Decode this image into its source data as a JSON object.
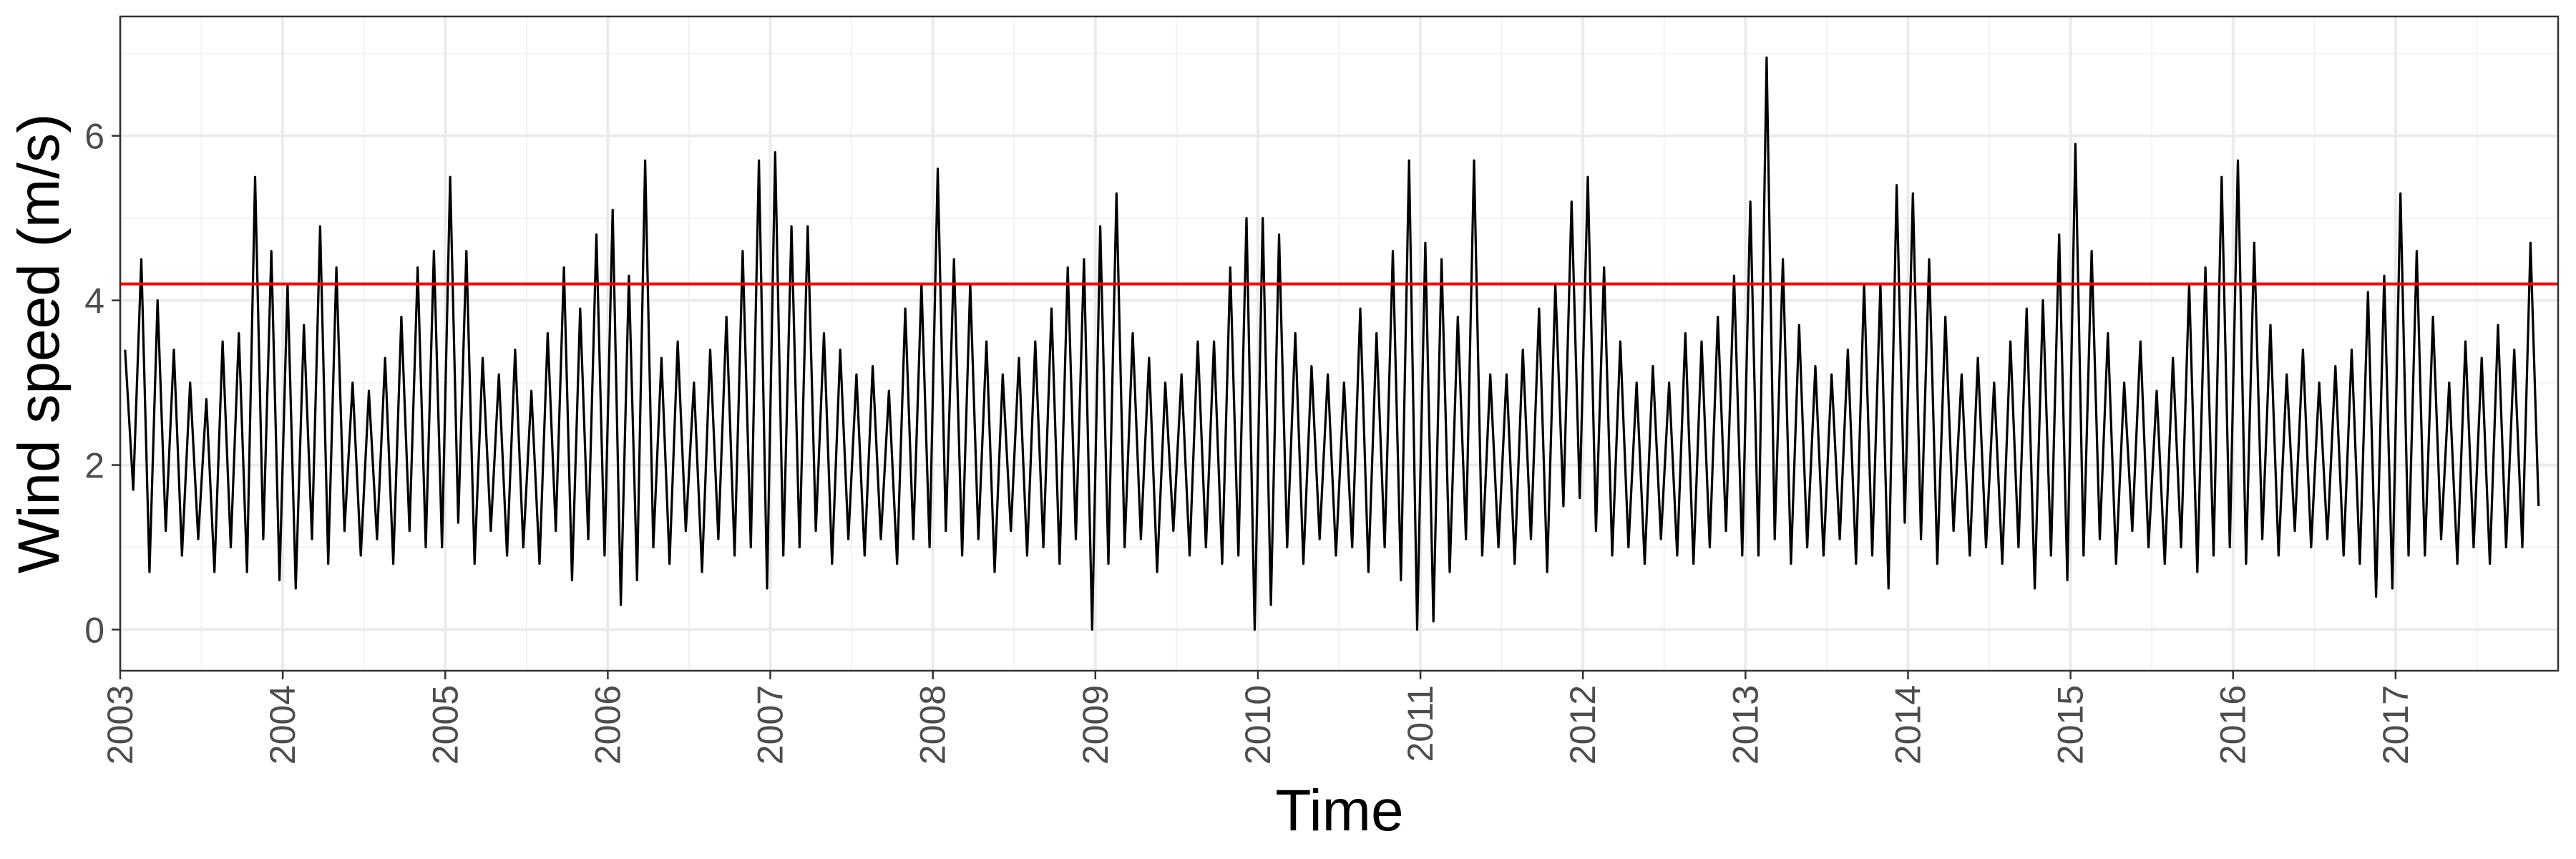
{
  "chart_data": {
    "type": "line",
    "x_label": "Time",
    "y_label": "Wind speed (m/s)",
    "color": "#000000",
    "hline": 4.2,
    "hline_color": "#ff0000",
    "grid": true,
    "xlim": [
      2003,
      2018
    ],
    "ylim": [
      -0.5,
      7.45
    ],
    "xticks": [
      2003,
      2004,
      2005,
      2006,
      2007,
      2008,
      2009,
      2010,
      2011,
      2012,
      2013,
      2014,
      2015,
      2016,
      2017
    ],
    "minor_xticks": [
      2003.5,
      2004.5,
      2005.5,
      2006.5,
      2007.5,
      2008.5,
      2009.5,
      2010.5,
      2011.5,
      2012.5,
      2013.5,
      2014.5,
      2015.5,
      2016.5,
      2017.5
    ],
    "yticks": [
      0,
      2,
      4,
      6
    ],
    "minor_yticks": [
      1,
      3,
      5,
      7
    ],
    "x": [
      2003.03,
      2003.08,
      2003.13,
      2003.18,
      2003.23,
      2003.28,
      2003.33,
      2003.38,
      2003.43,
      2003.48,
      2003.53,
      2003.58,
      2003.63,
      2003.68,
      2003.73,
      2003.78,
      2003.83,
      2003.88,
      2003.93,
      2003.98,
      2004.03,
      2004.08,
      2004.13,
      2004.18,
      2004.23,
      2004.28,
      2004.33,
      2004.38,
      2004.43,
      2004.48,
      2004.53,
      2004.58,
      2004.63,
      2004.68,
      2004.73,
      2004.78,
      2004.83,
      2004.88,
      2004.93,
      2004.98,
      2005.03,
      2005.08,
      2005.13,
      2005.18,
      2005.23,
      2005.28,
      2005.33,
      2005.38,
      2005.43,
      2005.48,
      2005.53,
      2005.58,
      2005.63,
      2005.68,
      2005.73,
      2005.78,
      2005.83,
      2005.88,
      2005.93,
      2005.98,
      2006.03,
      2006.08,
      2006.13,
      2006.18,
      2006.23,
      2006.28,
      2006.33,
      2006.38,
      2006.43,
      2006.48,
      2006.53,
      2006.58,
      2006.63,
      2006.68,
      2006.73,
      2006.78,
      2006.83,
      2006.88,
      2006.93,
      2006.98,
      2007.03,
      2007.08,
      2007.13,
      2007.18,
      2007.23,
      2007.28,
      2007.33,
      2007.38,
      2007.43,
      2007.48,
      2007.53,
      2007.58,
      2007.63,
      2007.68,
      2007.73,
      2007.78,
      2007.83,
      2007.88,
      2007.93,
      2007.98,
      2008.03,
      2008.08,
      2008.13,
      2008.18,
      2008.23,
      2008.28,
      2008.33,
      2008.38,
      2008.43,
      2008.48,
      2008.53,
      2008.58,
      2008.63,
      2008.68,
      2008.73,
      2008.78,
      2008.83,
      2008.88,
      2008.93,
      2008.98,
      2009.03,
      2009.08,
      2009.13,
      2009.18,
      2009.23,
      2009.28,
      2009.33,
      2009.38,
      2009.43,
      2009.48,
      2009.53,
      2009.58,
      2009.63,
      2009.68,
      2009.73,
      2009.78,
      2009.83,
      2009.88,
      2009.93,
      2009.98,
      2010.03,
      2010.08,
      2010.13,
      2010.18,
      2010.23,
      2010.28,
      2010.33,
      2010.38,
      2010.43,
      2010.48,
      2010.53,
      2010.58,
      2010.63,
      2010.68,
      2010.73,
      2010.78,
      2010.83,
      2010.88,
      2010.93,
      2010.98,
      2011.03,
      2011.08,
      2011.13,
      2011.18,
      2011.23,
      2011.28,
      2011.33,
      2011.38,
      2011.43,
      2011.48,
      2011.53,
      2011.58,
      2011.63,
      2011.68,
      2011.73,
      2011.78,
      2011.83,
      2011.88,
      2011.93,
      2011.98,
      2012.03,
      2012.08,
      2012.13,
      2012.18,
      2012.23,
      2012.28,
      2012.33,
      2012.38,
      2012.43,
      2012.48,
      2012.53,
      2012.58,
      2012.63,
      2012.68,
      2012.73,
      2012.78,
      2012.83,
      2012.88,
      2012.93,
      2012.98,
      2013.03,
      2013.08,
      2013.13,
      2013.18,
      2013.23,
      2013.28,
      2013.33,
      2013.38,
      2013.43,
      2013.48,
      2013.53,
      2013.58,
      2013.63,
      2013.68,
      2013.73,
      2013.78,
      2013.83,
      2013.88,
      2013.93,
      2013.98,
      2014.03,
      2014.08,
      2014.13,
      2014.18,
      2014.23,
      2014.28,
      2014.33,
      2014.38,
      2014.43,
      2014.48,
      2014.53,
      2014.58,
      2014.63,
      2014.68,
      2014.73,
      2014.78,
      2014.83,
      2014.88,
      2014.93,
      2014.98,
      2015.03,
      2015.08,
      2015.13,
      2015.18,
      2015.23,
      2015.28,
      2015.33,
      2015.38,
      2015.43,
      2015.48,
      2015.53,
      2015.58,
      2015.63,
      2015.68,
      2015.73,
      2015.78,
      2015.83,
      2015.88,
      2015.93,
      2015.98,
      2016.03,
      2016.08,
      2016.13,
      2016.18,
      2016.23,
      2016.28,
      2016.33,
      2016.38,
      2016.43,
      2016.48,
      2016.53,
      2016.58,
      2016.63,
      2016.68,
      2016.73,
      2016.78,
      2016.83,
      2016.88,
      2016.93,
      2016.98,
      2017.03,
      2017.08,
      2017.13,
      2017.18,
      2017.23,
      2017.28,
      2017.33,
      2017.38,
      2017.43,
      2017.48,
      2017.53,
      2017.58,
      2017.63,
      2017.68,
      2017.73,
      2017.78,
      2017.83,
      2017.88
    ],
    "values": [
      3.4,
      1.7,
      4.5,
      0.7,
      4.0,
      1.2,
      3.4,
      0.9,
      3.0,
      1.1,
      2.8,
      0.7,
      3.5,
      1.0,
      3.6,
      0.7,
      5.5,
      1.1,
      4.6,
      0.6,
      4.2,
      0.5,
      3.7,
      1.1,
      4.9,
      0.8,
      4.4,
      1.2,
      3.0,
      0.9,
      2.9,
      1.1,
      3.3,
      0.8,
      3.8,
      1.2,
      4.4,
      1.0,
      4.6,
      1.0,
      5.5,
      1.3,
      4.6,
      0.8,
      3.3,
      1.2,
      3.1,
      0.9,
      3.4,
      1.0,
      2.9,
      0.8,
      3.6,
      1.2,
      4.4,
      0.6,
      3.9,
      1.1,
      4.8,
      0.9,
      5.1,
      0.3,
      4.3,
      0.6,
      5.7,
      1.0,
      3.3,
      0.8,
      3.5,
      1.2,
      3.0,
      0.7,
      3.4,
      1.1,
      3.8,
      0.9,
      4.6,
      1.0,
      5.7,
      0.5,
      5.8,
      0.9,
      4.9,
      1.0,
      4.9,
      1.2,
      3.6,
      0.8,
      3.4,
      1.1,
      3.1,
      0.9,
      3.2,
      1.1,
      2.9,
      0.8,
      3.9,
      1.1,
      4.2,
      1.0,
      5.6,
      1.2,
      4.5,
      0.9,
      4.2,
      1.1,
      3.5,
      0.7,
      3.1,
      1.2,
      3.3,
      0.9,
      3.5,
      1.0,
      3.9,
      0.8,
      4.4,
      1.1,
      4.5,
      0.0,
      4.9,
      0.8,
      5.3,
      1.0,
      3.6,
      1.1,
      3.3,
      0.7,
      3.0,
      1.2,
      3.1,
      0.9,
      3.5,
      1.0,
      3.5,
      0.8,
      4.4,
      0.9,
      5.0,
      0.0,
      5.0,
      0.3,
      4.8,
      1.0,
      3.6,
      0.8,
      3.2,
      1.1,
      3.1,
      0.9,
      3.0,
      1.0,
      3.9,
      0.7,
      3.6,
      1.0,
      4.6,
      0.6,
      5.7,
      0.0,
      4.7,
      0.1,
      4.5,
      0.7,
      3.8,
      1.1,
      5.7,
      0.9,
      3.1,
      1.0,
      3.1,
      0.8,
      3.4,
      1.1,
      3.9,
      0.7,
      4.2,
      1.5,
      5.2,
      1.6,
      5.5,
      1.2,
      4.4,
      0.9,
      3.5,
      1.0,
      3.0,
      0.8,
      3.2,
      1.1,
      3.0,
      0.9,
      3.6,
      0.8,
      3.5,
      1.0,
      3.8,
      1.2,
      4.3,
      0.9,
      5.2,
      0.9,
      6.95,
      1.1,
      4.5,
      0.8,
      3.7,
      1.0,
      3.2,
      0.9,
      3.1,
      1.1,
      3.4,
      0.8,
      4.2,
      0.9,
      4.2,
      0.5,
      5.4,
      1.3,
      5.3,
      1.1,
      4.5,
      0.8,
      3.8,
      1.2,
      3.1,
      0.9,
      3.3,
      1.0,
      3.0,
      0.8,
      3.5,
      1.0,
      3.9,
      0.5,
      4.0,
      0.9,
      4.8,
      0.6,
      5.9,
      0.9,
      4.6,
      1.1,
      3.6,
      0.8,
      3.0,
      1.2,
      3.5,
      1.0,
      2.9,
      0.8,
      3.3,
      1.0,
      4.2,
      0.7,
      4.4,
      0.9,
      5.5,
      1.0,
      5.7,
      0.8,
      4.7,
      1.1,
      3.7,
      0.9,
      3.1,
      1.2,
      3.4,
      1.0,
      3.0,
      1.1,
      3.2,
      0.9,
      3.4,
      0.8,
      4.1,
      0.4,
      4.3,
      0.5,
      5.3,
      0.9,
      4.6,
      0.9,
      3.8,
      1.1,
      3.0,
      0.8,
      3.5,
      1.0,
      3.3,
      0.8,
      3.7,
      1.0,
      3.4,
      1.0,
      4.7,
      1.5
    ]
  }
}
